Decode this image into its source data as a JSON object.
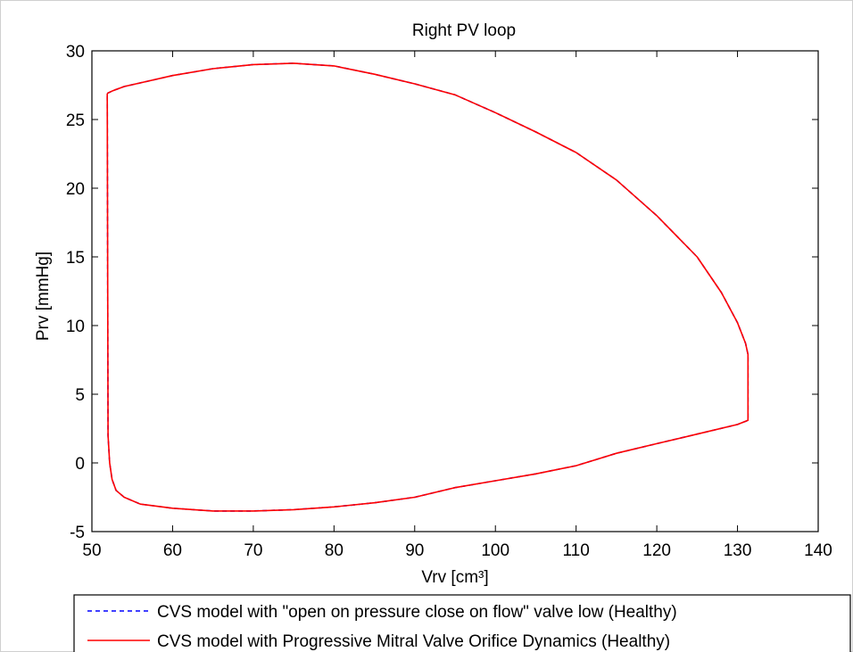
{
  "chart_data": {
    "type": "line",
    "title": "Right PV loop",
    "xlabel": "Vrv [cm³]",
    "ylabel": "Prv [mmHg]",
    "xlim": [
      50,
      140
    ],
    "ylim": [
      -5,
      30
    ],
    "xticks": [
      50,
      60,
      70,
      80,
      90,
      100,
      110,
      120,
      130,
      140
    ],
    "yticks": [
      -5,
      0,
      5,
      10,
      15,
      20,
      25,
      30
    ],
    "grid": false,
    "legend_position": "bottom",
    "series": [
      {
        "name": "CVS model with \"open on pressure close on flow\" valve low (Healthy)",
        "color": "#0000ff",
        "style": "dashed",
        "x": [
          51.9,
          52.6,
          54.0,
          57.0,
          60.0,
          65.0,
          70.0,
          75.0,
          80.0,
          85.0,
          90.0,
          95.0,
          100.0,
          105.0,
          110.0,
          115.0,
          120.0,
          125.0,
          128.0,
          130.0,
          131.0,
          131.3,
          131.3,
          130.0,
          125.0,
          120.0,
          115.0,
          110.0,
          105.0,
          100.0,
          95.0,
          90.0,
          85.0,
          80.0,
          75.0,
          70.0,
          65.0,
          60.0,
          56.0,
          54.0,
          53.0,
          52.5,
          52.2,
          52.0,
          51.9
        ],
        "y": [
          26.9,
          27.1,
          27.4,
          27.8,
          28.2,
          28.7,
          29.0,
          29.1,
          28.9,
          28.3,
          27.6,
          26.8,
          25.5,
          24.1,
          22.6,
          20.6,
          18.0,
          15.0,
          12.4,
          10.2,
          8.7,
          7.9,
          3.1,
          2.8,
          2.1,
          1.4,
          0.7,
          -0.2,
          -0.8,
          -1.3,
          -1.8,
          -2.5,
          -2.9,
          -3.2,
          -3.4,
          -3.5,
          -3.5,
          -3.3,
          -3.0,
          -2.5,
          -2.0,
          -1.2,
          0.0,
          2.0,
          26.9
        ]
      },
      {
        "name": "CVS model with Progressive Mitral Valve Orifice Dynamics (Healthy)",
        "color": "#ff0000",
        "style": "solid",
        "x": [
          51.9,
          52.6,
          54.0,
          57.0,
          60.0,
          65.0,
          70.0,
          75.0,
          80.0,
          85.0,
          90.0,
          95.0,
          100.0,
          105.0,
          110.0,
          115.0,
          120.0,
          125.0,
          128.0,
          130.0,
          131.0,
          131.3,
          131.3,
          130.0,
          125.0,
          120.0,
          115.0,
          110.0,
          105.0,
          100.0,
          95.0,
          90.0,
          85.0,
          80.0,
          75.0,
          70.0,
          65.0,
          60.0,
          56.0,
          54.0,
          53.0,
          52.5,
          52.2,
          52.0,
          51.9
        ],
        "y": [
          26.9,
          27.1,
          27.4,
          27.8,
          28.2,
          28.7,
          29.0,
          29.1,
          28.9,
          28.3,
          27.6,
          26.8,
          25.5,
          24.1,
          22.6,
          20.6,
          18.0,
          15.0,
          12.4,
          10.2,
          8.7,
          7.9,
          3.1,
          2.8,
          2.1,
          1.4,
          0.7,
          -0.2,
          -0.8,
          -1.3,
          -1.8,
          -2.5,
          -2.9,
          -3.2,
          -3.4,
          -3.5,
          -3.5,
          -3.3,
          -3.0,
          -2.5,
          -2.0,
          -1.2,
          0.0,
          2.0,
          26.9
        ]
      }
    ]
  }
}
